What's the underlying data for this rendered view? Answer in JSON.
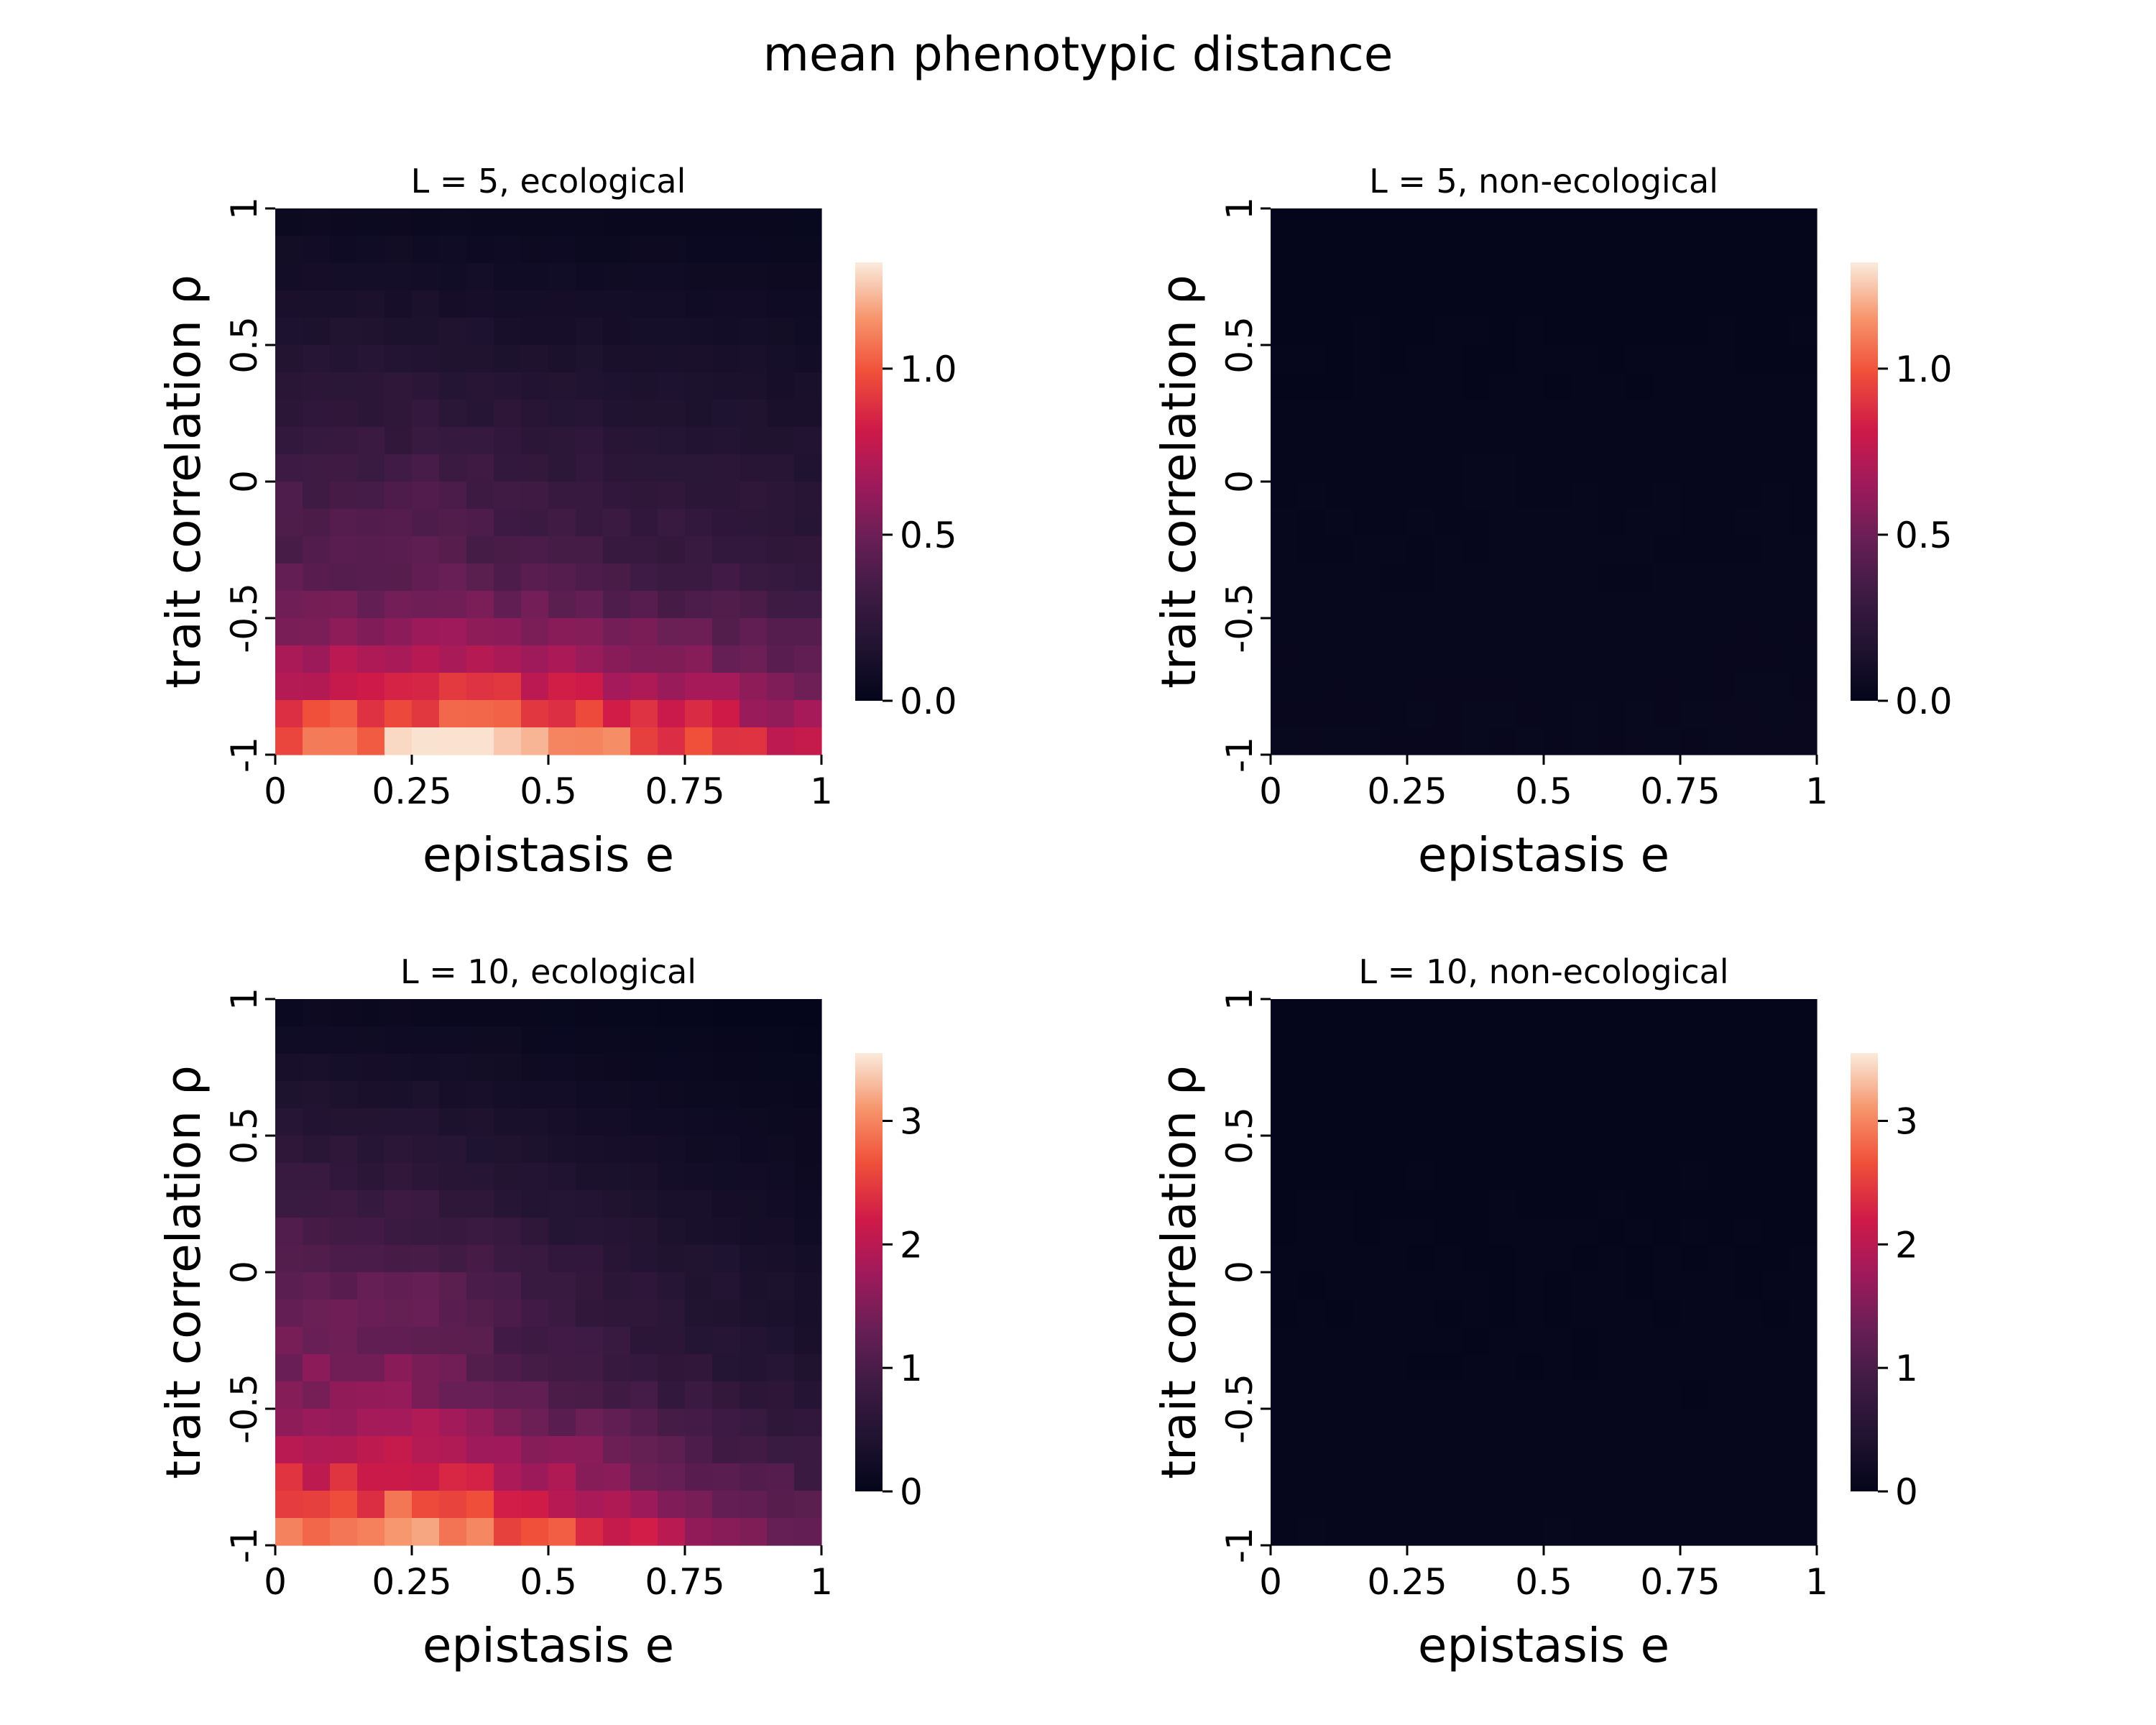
{
  "figure": {
    "title": "mean phenotypic distance"
  },
  "chart_data": [
    {
      "type": "heatmap",
      "title": "L = 5, ecological",
      "xlabel": "epistasis e",
      "ylabel": "trait correlation ρ",
      "xticks": [
        "0",
        "0.25",
        "0.5",
        "0.75",
        "1"
      ],
      "yticks": [
        "1",
        "0.5",
        "0",
        "-0.5",
        "-1"
      ],
      "x_range": [
        0,
        1
      ],
      "y_range": [
        -1,
        1
      ],
      "grid_shape": [
        20,
        20
      ],
      "vmin": 0,
      "vmax": 1.32,
      "colorbar_ticks": [
        "0.0",
        "0.5",
        "1.0"
      ],
      "colorbar_tick_values": [
        0,
        0.5,
        1.0
      ],
      "colormap": "rocket",
      "value_profile": {
        "at_rho_minus_1": [
          1.05,
          1.3,
          1.25,
          1.05,
          0.8
        ],
        "at_rho_0": [
          0.35,
          0.38,
          0.3,
          0.25,
          0.2
        ],
        "at_rho_plus_1": [
          0.05,
          0.04,
          0.03,
          0.03,
          0.02
        ],
        "note_e_points": [
          0,
          0.25,
          0.5,
          0.75,
          1
        ]
      }
    },
    {
      "type": "heatmap",
      "title": "L = 5, non-ecological",
      "xlabel": "epistasis e",
      "ylabel": "trait correlation ρ",
      "xticks": [
        "0",
        "0.25",
        "0.5",
        "0.75",
        "1"
      ],
      "yticks": [
        "1",
        "0.5",
        "0",
        "-0.5",
        "-1"
      ],
      "x_range": [
        0,
        1
      ],
      "y_range": [
        -1,
        1
      ],
      "grid_shape": [
        20,
        20
      ],
      "vmin": 0,
      "vmax": 1.32,
      "colorbar_ticks": [
        "0.0",
        "0.5",
        "1.0"
      ],
      "colorbar_tick_values": [
        0,
        0.5,
        1.0
      ],
      "colormap": "rocket",
      "value_profile": {
        "at_rho_minus_1": [
          0.03,
          0.03,
          0.03,
          0.03,
          0.04
        ],
        "at_rho_0": [
          0.02,
          0.02,
          0.02,
          0.02,
          0.02
        ],
        "at_rho_plus_1": [
          0.01,
          0.01,
          0.01,
          0.01,
          0.01
        ],
        "note_e_points": [
          0,
          0.25,
          0.5,
          0.75,
          1
        ]
      }
    },
    {
      "type": "heatmap",
      "title": "L = 10, ecological",
      "xlabel": "epistasis e",
      "ylabel": "trait correlation ρ",
      "xticks": [
        "0",
        "0.25",
        "0.5",
        "0.75",
        "1"
      ],
      "yticks": [
        "1",
        "0.5",
        "0",
        "-0.5",
        "-1"
      ],
      "x_range": [
        0,
        1
      ],
      "y_range": [
        -1,
        1
      ],
      "grid_shape": [
        20,
        20
      ],
      "vmin": 0,
      "vmax": 3.55,
      "colorbar_ticks": [
        "0",
        "1",
        "2",
        "3"
      ],
      "colorbar_tick_values": [
        0,
        1,
        2,
        3
      ],
      "colormap": "rocket",
      "value_profile": {
        "at_rho_minus_1": [
          3.0,
          3.4,
          2.8,
          2.0,
          1.4
        ],
        "at_rho_0": [
          1.3,
          1.2,
          0.8,
          0.5,
          0.3
        ],
        "at_rho_plus_1": [
          0.1,
          0.08,
          0.05,
          0.03,
          0.02
        ],
        "note_e_points": [
          0,
          0.25,
          0.5,
          0.75,
          1
        ]
      }
    },
    {
      "type": "heatmap",
      "title": "L = 10, non-ecological",
      "xlabel": "epistasis e",
      "ylabel": "trait correlation ρ",
      "xticks": [
        "0",
        "0.25",
        "0.5",
        "0.75",
        "1"
      ],
      "yticks": [
        "1",
        "0.5",
        "0",
        "-0.5",
        "-1"
      ],
      "x_range": [
        0,
        1
      ],
      "y_range": [
        -1,
        1
      ],
      "grid_shape": [
        20,
        20
      ],
      "vmin": 0,
      "vmax": 3.55,
      "colorbar_ticks": [
        "0",
        "1",
        "2",
        "3"
      ],
      "colorbar_tick_values": [
        0,
        1,
        2,
        3
      ],
      "colormap": "rocket",
      "value_profile": {
        "at_rho_minus_1": [
          0.05,
          0.05,
          0.05,
          0.05,
          0.05
        ],
        "at_rho_0": [
          0.04,
          0.04,
          0.04,
          0.04,
          0.04
        ],
        "at_rho_plus_1": [
          0.03,
          0.03,
          0.03,
          0.03,
          0.03
        ],
        "note_e_points": [
          0,
          0.25,
          0.5,
          0.75,
          1
        ]
      }
    }
  ]
}
